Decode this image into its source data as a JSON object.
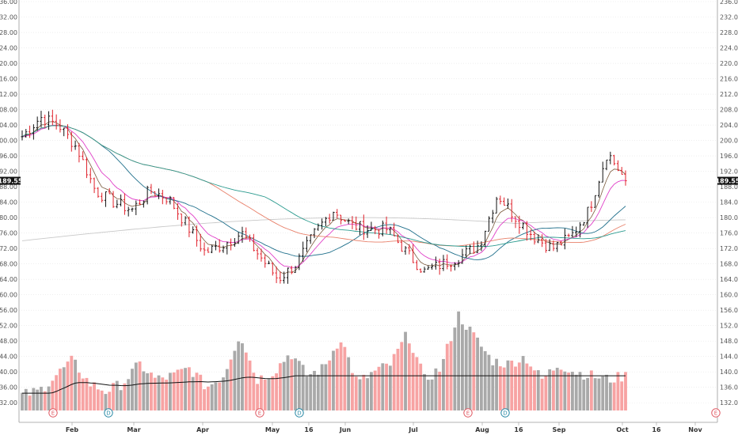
{
  "chart_data": {
    "type": "candlestick",
    "y_axis": {
      "range": [
        130,
        236
      ],
      "tick_labels": [
        "236.00",
        "232.00",
        "228.00",
        "224.00",
        "220.00",
        "216.00",
        "212.00",
        "208.00",
        "204.00",
        "200.00",
        "196.00",
        "192.00",
        "188.00",
        "184.00",
        "180.00",
        "176.00",
        "172.00",
        "168.00",
        "164.00",
        "160.00",
        "156.00",
        "152.00",
        "148.00",
        "144.00",
        "140.00",
        "136.00",
        "132.00"
      ]
    },
    "x_axis": {
      "tick_labels": [
        "Feb",
        "Mar",
        "Apr",
        "May",
        "16",
        "Jun",
        "Jul",
        "Aug",
        "16",
        "Sep",
        "Oct",
        "16",
        "Nov"
      ]
    },
    "last_price_tag": "189.55",
    "events": [
      "E",
      "D",
      "E",
      "D",
      "E",
      "D",
      "E"
    ],
    "price_anchors": [
      {
        "date": "Jan",
        "price": 201
      },
      {
        "date": "Jan",
        "price": 206
      },
      {
        "date": "Jan",
        "price": 204
      },
      {
        "date": "Feb",
        "price": 198
      },
      {
        "date": "Feb",
        "price": 187
      },
      {
        "date": "Feb",
        "price": 184
      },
      {
        "date": "Mar",
        "price": 182
      },
      {
        "date": "Mar",
        "price": 187
      },
      {
        "date": "Mar",
        "price": 185
      },
      {
        "date": "Apr",
        "price": 178
      },
      {
        "date": "Apr",
        "price": 171
      },
      {
        "date": "Apr",
        "price": 173
      },
      {
        "date": "Apr",
        "price": 176
      },
      {
        "date": "May",
        "price": 170
      },
      {
        "date": "May",
        "price": 164
      },
      {
        "date": "May",
        "price": 168
      },
      {
        "date": "May",
        "price": 176
      },
      {
        "date": "May",
        "price": 182
      },
      {
        "date": "Jun",
        "price": 178
      },
      {
        "date": "Jun",
        "price": 177
      },
      {
        "date": "Jun",
        "price": 177
      },
      {
        "date": "Jul",
        "price": 171
      },
      {
        "date": "Jul",
        "price": 166
      },
      {
        "date": "Jul",
        "price": 168
      },
      {
        "date": "Jul",
        "price": 170
      },
      {
        "date": "Aug",
        "price": 173
      },
      {
        "date": "Aug",
        "price": 186
      },
      {
        "date": "Aug",
        "price": 180
      },
      {
        "date": "Aug",
        "price": 175
      },
      {
        "date": "Aug",
        "price": 172
      },
      {
        "date": "Sep",
        "price": 175
      },
      {
        "date": "Sep",
        "price": 182
      },
      {
        "date": "Sep",
        "price": 197
      },
      {
        "date": "Oct",
        "price": 189.55
      }
    ],
    "volume_anchors": [
      134,
      135,
      139,
      143,
      137,
      135,
      137,
      142,
      138,
      139,
      141,
      136,
      139,
      150,
      138,
      140,
      145,
      139,
      141,
      149,
      137,
      140,
      142,
      150,
      138,
      141,
      155,
      149,
      143,
      142,
      144,
      138,
      142,
      140,
      139,
      138,
      139
    ]
  }
}
